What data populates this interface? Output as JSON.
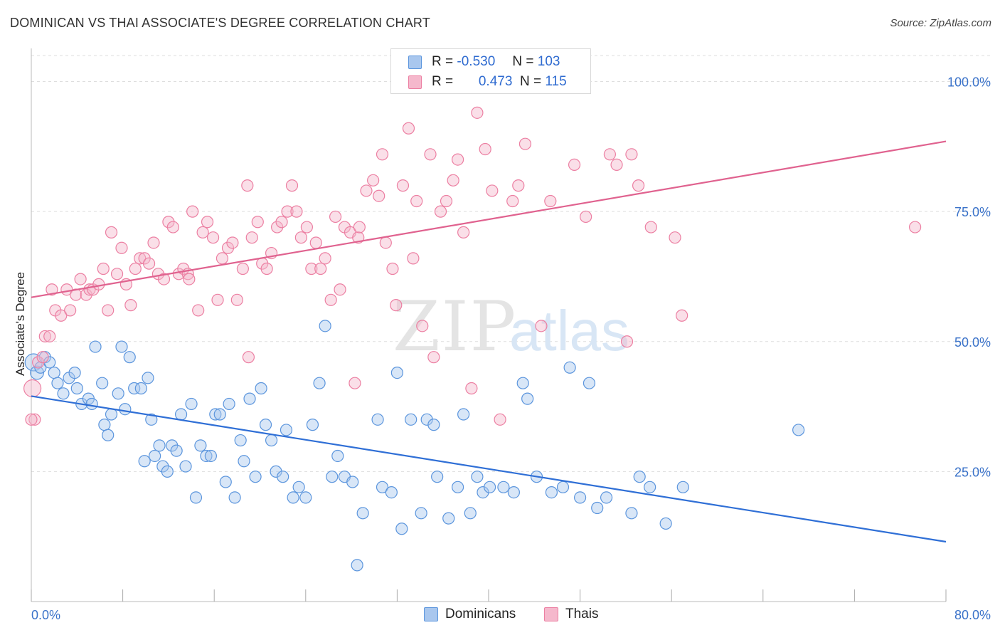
{
  "title": "DOMINICAN VS THAI ASSOCIATE'S DEGREE CORRELATION CHART",
  "source": "Source: ZipAtlas.com",
  "watermark": {
    "zip": "ZIP",
    "atlas": "atlas"
  },
  "legend": {
    "r_label": "R =",
    "n_label": "N =",
    "rows": [
      {
        "r": "-0.530",
        "n": "103",
        "color": "#a9c7ee"
      },
      {
        "r": "0.473",
        "n": "115",
        "color": "#f5b8cc"
      }
    ]
  },
  "bottom_legend": [
    {
      "label": "Dominicans",
      "color": "#a9c7ee"
    },
    {
      "label": "Thais",
      "color": "#f5b8cc"
    }
  ],
  "chart_data": {
    "type": "scatter",
    "title": "DOMINICAN VS THAI ASSOCIATE'S DEGREE CORRELATION CHART",
    "xlabel": "",
    "ylabel": "Associate's Degree",
    "xlim": [
      0,
      80
    ],
    "ylim": [
      0,
      105
    ],
    "x_tick_labels": [
      "0.0%",
      "80.0%"
    ],
    "y_ticks": [
      25,
      50,
      75,
      100
    ],
    "y_tick_labels": [
      "25.0%",
      "50.0%",
      "75.0%",
      "100.0%"
    ],
    "grid": true,
    "series": [
      {
        "name": "Dominicans",
        "color": "#5b95dd",
        "fill": "#a9c7ee",
        "trend_color": "#2f6fd6",
        "trend": {
          "x0": 0,
          "y0": 39.5,
          "x1": 80,
          "y1": 11.5
        },
        "x": [
          0.2,
          0.5,
          0.8,
          1.2,
          1.6,
          2.0,
          2.3,
          2.8,
          3.3,
          3.8,
          4.0,
          4.4,
          5.0,
          5.3,
          5.6,
          6.2,
          6.4,
          6.7,
          7.0,
          7.6,
          7.9,
          8.2,
          8.6,
          9.0,
          9.6,
          9.9,
          10.2,
          10.5,
          10.8,
          11.2,
          11.5,
          11.9,
          12.3,
          12.7,
          13.1,
          13.5,
          14.0,
          14.4,
          14.8,
          15.3,
          15.7,
          16.1,
          16.5,
          17.0,
          17.3,
          17.8,
          18.3,
          18.6,
          19.1,
          19.6,
          20.1,
          20.5,
          21.0,
          21.4,
          22.0,
          22.3,
          22.9,
          23.4,
          24.0,
          24.6,
          25.2,
          25.7,
          26.3,
          26.8,
          27.4,
          28.1,
          28.5,
          29.0,
          30.3,
          30.7,
          31.5,
          32.0,
          32.4,
          33.2,
          34.1,
          34.6,
          35.2,
          35.5,
          36.5,
          37.3,
          37.8,
          38.4,
          39.0,
          39.5,
          40.1,
          41.3,
          42.2,
          43.0,
          43.4,
          44.2,
          45.5,
          46.5,
          47.1,
          48.0,
          48.8,
          49.5,
          50.3,
          52.5,
          53.2,
          54.1,
          55.5,
          57.0,
          67.1
        ],
        "y": [
          46,
          44,
          45,
          47,
          46,
          44,
          42,
          40,
          43,
          44,
          41,
          38,
          39,
          38,
          49,
          42,
          34,
          32,
          36,
          40,
          49,
          37,
          47,
          41,
          41,
          27,
          43,
          35,
          28,
          30,
          26,
          25,
          30,
          29,
          36,
          26,
          38,
          20,
          30,
          28,
          28,
          36,
          36,
          23,
          38,
          20,
          31,
          27,
          39,
          24,
          41,
          34,
          31,
          25,
          24,
          33,
          20,
          22,
          20,
          34,
          42,
          53,
          24,
          28,
          24,
          23,
          7,
          17,
          35,
          22,
          21,
          44,
          14,
          35,
          17,
          35,
          34,
          24,
          16,
          22,
          36,
          17,
          24,
          21,
          22,
          22,
          21,
          42,
          39,
          24,
          21,
          22,
          45,
          20,
          42,
          18,
          20,
          17,
          24,
          22,
          15,
          22,
          33
        ],
        "sizes": [
          18,
          14,
          12,
          12,
          12,
          12,
          12,
          12,
          12,
          12,
          12,
          12,
          12,
          12,
          12,
          12,
          12,
          12,
          12,
          12,
          12,
          12,
          12,
          12,
          12,
          12,
          12,
          12,
          12,
          12,
          12,
          12,
          12,
          12,
          12,
          12,
          12,
          12,
          12,
          12,
          12,
          12,
          12,
          12,
          12,
          12,
          12,
          12,
          12,
          12,
          12,
          12,
          12,
          12,
          12,
          12,
          12,
          12,
          12,
          12,
          12,
          12,
          12,
          12,
          12,
          12,
          12,
          12,
          12,
          12,
          12,
          12,
          12,
          12,
          12,
          12,
          12,
          12,
          12,
          12,
          12,
          12,
          12,
          12,
          12,
          12,
          12,
          12,
          12,
          12,
          12,
          12,
          12,
          12,
          12,
          12,
          12,
          12,
          12,
          12,
          12,
          12,
          12
        ]
      },
      {
        "name": "Thais",
        "color": "#ec7fa2",
        "fill": "#f5b8cc",
        "trend_color": "#e0628f",
        "trend": {
          "x0": 0,
          "y0": 58.5,
          "x1": 80,
          "y1": 88.5
        },
        "x": [
          0.1,
          0.6,
          1.2,
          1.6,
          2.1,
          2.6,
          3.1,
          3.4,
          3.9,
          4.3,
          4.8,
          5.1,
          5.4,
          5.9,
          6.3,
          6.7,
          7.0,
          7.5,
          7.9,
          8.3,
          8.7,
          9.1,
          9.5,
          9.9,
          10.3,
          10.7,
          11.1,
          11.6,
          12.0,
          12.4,
          12.9,
          13.3,
          13.7,
          14.1,
          14.6,
          15.0,
          15.4,
          15.9,
          16.3,
          16.7,
          17.2,
          17.6,
          18.0,
          18.5,
          18.9,
          19.3,
          19.8,
          20.2,
          20.6,
          21.0,
          21.5,
          21.9,
          22.4,
          22.8,
          23.2,
          23.6,
          24.1,
          24.5,
          24.9,
          25.3,
          25.7,
          26.2,
          26.6,
          27.0,
          27.4,
          27.9,
          28.3,
          28.6,
          29.3,
          29.9,
          30.4,
          30.7,
          31.0,
          31.6,
          31.9,
          32.5,
          33.0,
          33.4,
          33.7,
          34.2,
          34.9,
          35.2,
          35.8,
          36.3,
          36.9,
          37.3,
          37.8,
          38.5,
          39.0,
          39.7,
          40.3,
          41.0,
          42.1,
          42.6,
          43.2,
          44.6,
          45.4,
          47.5,
          48.5,
          50.6,
          51.2,
          52.1,
          52.5,
          53.1,
          54.2,
          56.3,
          56.9,
          77.3,
          1.0,
          1.8,
          13.8,
          28.7,
          0.3,
          0.0,
          19.0
        ],
        "y": [
          41,
          46,
          51,
          51,
          56,
          55,
          60,
          56,
          59,
          62,
          59,
          60,
          60,
          61,
          64,
          56,
          71,
          63,
          68,
          61,
          57,
          64,
          66,
          66,
          65,
          69,
          63,
          62,
          73,
          72,
          63,
          64,
          63,
          75,
          56,
          71,
          73,
          70,
          58,
          66,
          68,
          69,
          58,
          64,
          80,
          70,
          73,
          65,
          64,
          67,
          72,
          73,
          75,
          80,
          75,
          70,
          72,
          64,
          69,
          64,
          66,
          58,
          74,
          60,
          72,
          71,
          42,
          70,
          79,
          81,
          78,
          86,
          69,
          64,
          57,
          80,
          91,
          66,
          77,
          53,
          86,
          47,
          75,
          77,
          81,
          85,
          71,
          41,
          94,
          87,
          79,
          35,
          77,
          80,
          88,
          53,
          77,
          84,
          74,
          86,
          84,
          50,
          86,
          80,
          72,
          70,
          55,
          72,
          47,
          60,
          62,
          72,
          35,
          35,
          47
        ],
        "sizes": [
          18,
          12,
          12,
          12,
          12,
          12,
          12,
          12,
          12,
          12,
          12,
          12,
          12,
          12,
          12,
          12,
          12,
          12,
          12,
          12,
          12,
          12,
          12,
          12,
          12,
          12,
          12,
          12,
          12,
          12,
          12,
          12,
          12,
          12,
          12,
          12,
          12,
          12,
          12,
          12,
          12,
          12,
          12,
          12,
          12,
          12,
          12,
          12,
          12,
          12,
          12,
          12,
          12,
          12,
          12,
          12,
          12,
          12,
          12,
          12,
          12,
          12,
          12,
          12,
          12,
          12,
          12,
          12,
          12,
          12,
          12,
          12,
          12,
          12,
          12,
          12,
          12,
          12,
          12,
          12,
          12,
          12,
          12,
          12,
          12,
          12,
          12,
          12,
          12,
          12,
          12,
          12,
          12,
          12,
          12,
          12,
          12,
          12,
          12,
          12,
          12,
          12,
          12,
          12,
          12,
          12,
          12,
          12,
          12,
          12,
          12,
          12,
          12,
          12,
          12
        ]
      }
    ]
  }
}
